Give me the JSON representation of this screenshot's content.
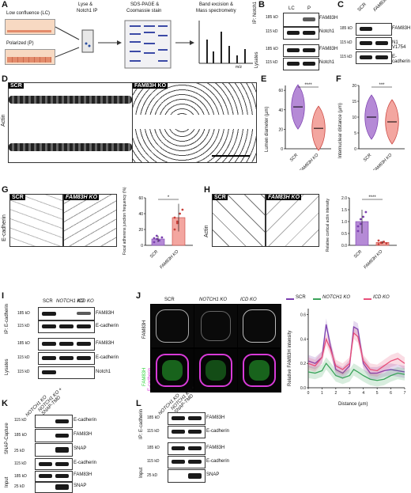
{
  "panelA": {
    "letter": "A",
    "low_conf": "Low confluence (LC)",
    "polarized": "Polarized (P)",
    "step1": "Lyse &",
    "step1b": "Notch1 IP",
    "step2": "SDS-PAGE &",
    "step2b": "Coomassie stain",
    "step3": "Band excision &",
    "step3b": "Mass spectrometry",
    "mz": "m/z"
  },
  "panelB": {
    "letter": "B",
    "cols": [
      "LC",
      "P"
    ],
    "kd": [
      "185 kD",
      "115 kD",
      "185 kD",
      "115 kD"
    ],
    "bands": [
      "FAM83H",
      "Notch1",
      "FAM83H",
      "Notch1"
    ],
    "ip": "IP: Notch1",
    "lysates": "Lysates"
  },
  "panelC": {
    "letter": "C",
    "cols": [
      "SCR",
      "FAM83H KO"
    ],
    "kd": [
      "185 kD",
      "115 kD",
      "115 kD"
    ],
    "bands": [
      "FAM83H",
      "N1 V1754",
      "E-cadherin"
    ]
  },
  "panelD": {
    "letter": "D",
    "ylabel": "Actin",
    "scr": "SCR",
    "ko": "FAM83H KO"
  },
  "panelE": {
    "letter": "E",
    "ylabel": "Lumen diameter (µm)",
    "yticks": [
      "0",
      "20",
      "40",
      "60"
    ],
    "sig": "****",
    "cats": [
      "SCR",
      "FAM83H KO"
    ]
  },
  "panelF": {
    "letter": "F",
    "ylabel": "Internuclear distance (µm)",
    "yticks": [
      "0",
      "5",
      "10",
      "15",
      "20"
    ],
    "sig": "***",
    "cats": [
      "SCR",
      "FAM83H KO"
    ]
  },
  "panelG": {
    "letter": "G",
    "ylabel_img": "E-cadherin",
    "scr": "SCR",
    "ko": "FAM83H KO",
    "ylabel": "Focal adherens junction frequency (%)",
    "yticks": [
      "0",
      "20",
      "40",
      "60"
    ],
    "sig": "*",
    "cats": [
      "SCR",
      "FAM83H KO"
    ]
  },
  "panelH": {
    "letter": "H",
    "ylabel_img": "Actin",
    "scr": "SCR",
    "ko": "FAM83H KO",
    "ylabel": "Relative cortical actin intensity",
    "yticks": [
      "0.0",
      "0.5",
      "1.0",
      "1.5",
      "2.0"
    ],
    "sig": "****",
    "cats": [
      "SCR",
      "FAM83H KO"
    ]
  },
  "panelI": {
    "letter": "I",
    "cols": [
      "SCR",
      "NOTCH1 KO",
      "ICD KO"
    ],
    "kd": [
      "185 kD",
      "115 kD",
      "185 kD",
      "115 kD",
      "115 kD"
    ],
    "bands": [
      "FAM83H",
      "E-cadherin",
      "FAM83H",
      "E-cadherin",
      "Notch1"
    ],
    "ip": "IP: E-cadherin",
    "lysates": "Lysates"
  },
  "panelJ": {
    "letter": "J",
    "cols": [
      "SCR",
      "NOTCH1 KO",
      "ICD KO"
    ],
    "row1": "FAM83H",
    "row2a": "FAM83H",
    "row2b": "E-cadherin",
    "legend": [
      "SCR",
      "NOTCH1 KO",
      "ICD KO"
    ],
    "ylabel": "Relative FAM83H intensity",
    "xlabel": "Distance (µm)",
    "xticks": [
      "0",
      "1",
      "2",
      "3",
      "4",
      "5",
      "6",
      "7"
    ],
    "yticks": [
      "0.0",
      "0.2",
      "0.4",
      "0.6"
    ]
  },
  "panelK": {
    "letter": "K",
    "cols": [
      "NOTCH1 KO",
      "NOTCH1 KO + SNAP-TMD"
    ],
    "kd": [
      "115 kD",
      "185 kD",
      "25 kD",
      "115 kD",
      "185 kD",
      "25 kD"
    ],
    "bands": [
      "E-cadherin",
      "FAM83H",
      "SNAP",
      "E-cadherin",
      "FAM83H",
      "SNAP"
    ],
    "capture": "SNAP-Capture",
    "input": "Input"
  },
  "panelL": {
    "letter": "L",
    "cols": [
      "NOTCH1 KO",
      "NOTCH1 KO + SNAP-TMD"
    ],
    "kd": [
      "185 kD",
      "115 kD",
      "185 kD",
      "115 kD",
      "25 kD"
    ],
    "bands": [
      "FAM83H",
      "E-cadherin",
      "FAM83H",
      "E-cadherin",
      "SNAP"
    ],
    "ip": "IP: E-cadherin",
    "input": "Input"
  },
  "colors": {
    "scr": "#7b3fb0",
    "notch1ko": "#3aa35a",
    "icdko": "#e8507a",
    "violin_scr": "#b58ad6",
    "violin_ko": "#f3a6a0",
    "green": "#2fd33a",
    "magenta": "#d83ad8"
  },
  "chart_data": [
    {
      "type": "violin",
      "title": "",
      "ylabel": "Lumen diameter (µm)",
      "categories": [
        "SCR",
        "FAM83H KO"
      ],
      "medians": [
        43,
        21
      ],
      "ylim": [
        0,
        65
      ],
      "significance": "****"
    },
    {
      "type": "violin",
      "title": "",
      "ylabel": "Internuclear distance (µm)",
      "categories": [
        "SCR",
        "FAM83H KO"
      ],
      "medians": [
        10,
        8.5
      ],
      "ylim": [
        0,
        20
      ],
      "significance": "***"
    },
    {
      "type": "bar",
      "ylabel": "Focal adherens junction frequency (%)",
      "categories": [
        "SCR",
        "FAM83H KO"
      ],
      "values": [
        8,
        35
      ],
      "ylim": [
        0,
        60
      ],
      "significance": "*"
    },
    {
      "type": "bar",
      "ylabel": "Relative cortical actin intensity",
      "categories": [
        "SCR",
        "FAM83H KO"
      ],
      "values": [
        1.0,
        0.12
      ],
      "ylim": [
        0,
        2.0
      ],
      "significance": "****"
    },
    {
      "type": "line",
      "ylabel": "Relative FAM83H intensity",
      "xlabel": "Distance (µm)",
      "xlim": [
        0,
        7
      ],
      "ylim": [
        0,
        0.65
      ],
      "x": [
        0,
        0.5,
        1,
        1.3,
        1.6,
        2,
        2.5,
        3,
        3.3,
        3.6,
        4,
        4.5,
        5,
        5.5,
        6,
        6.5,
        7
      ],
      "series": [
        {
          "name": "SCR",
          "values": [
            0.22,
            0.2,
            0.25,
            0.52,
            0.35,
            0.15,
            0.12,
            0.18,
            0.5,
            0.48,
            0.2,
            0.12,
            0.12,
            0.14,
            0.15,
            0.14,
            0.13
          ]
        },
        {
          "name": "NOTCH1 KO",
          "values": [
            0.13,
            0.12,
            0.14,
            0.2,
            0.16,
            0.1,
            0.08,
            0.1,
            0.15,
            0.13,
            0.1,
            0.07,
            0.06,
            0.07,
            0.1,
            0.12,
            0.11
          ]
        },
        {
          "name": "ICD KO",
          "values": [
            0.2,
            0.18,
            0.25,
            0.4,
            0.32,
            0.18,
            0.15,
            0.2,
            0.45,
            0.42,
            0.22,
            0.15,
            0.14,
            0.18,
            0.22,
            0.24,
            0.2
          ]
        }
      ]
    }
  ]
}
